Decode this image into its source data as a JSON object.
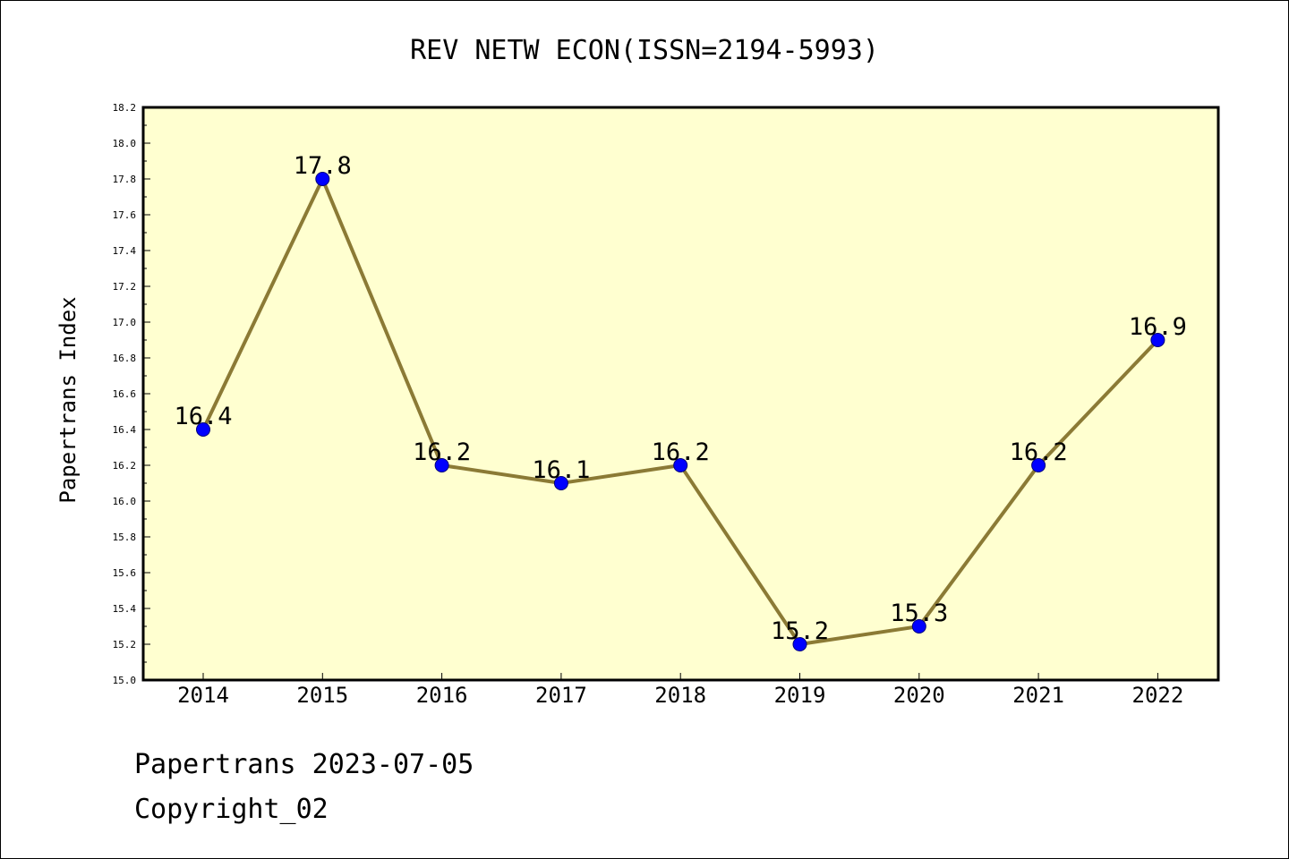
{
  "chart_data": {
    "type": "line",
    "title": "REV NETW ECON(ISSN=2194-5993)",
    "xlabel": "",
    "ylabel": "Papertrans Index",
    "x": [
      "2014",
      "2015",
      "2016",
      "2017",
      "2018",
      "2019",
      "2020",
      "2021",
      "2022"
    ],
    "series": [
      {
        "values": [
          16.4,
          17.8,
          16.2,
          16.1,
          16.2,
          15.2,
          15.3,
          16.2,
          16.9
        ]
      }
    ],
    "data_labels": [
      "16.4",
      "17.8",
      "16.2",
      "16.1",
      "16.2",
      "15.2",
      "15.3",
      "16.2",
      "16.9"
    ],
    "ylim": [
      15.0,
      18.2
    ],
    "yticks": [
      "15.0",
      "15.2",
      "15.4",
      "15.6",
      "15.8",
      "16.0",
      "16.2",
      "16.4",
      "16.6",
      "16.8",
      "17.0",
      "17.2",
      "17.4",
      "17.6",
      "17.8",
      "18.0",
      "18.2"
    ],
    "grid": false,
    "colors": {
      "plot_background": "#ffffd0",
      "line": "#8b7a35",
      "marker": "#0000ff"
    }
  },
  "footer": {
    "line1": "Papertrans 2023-07-05",
    "line2": "Copyright_02"
  }
}
